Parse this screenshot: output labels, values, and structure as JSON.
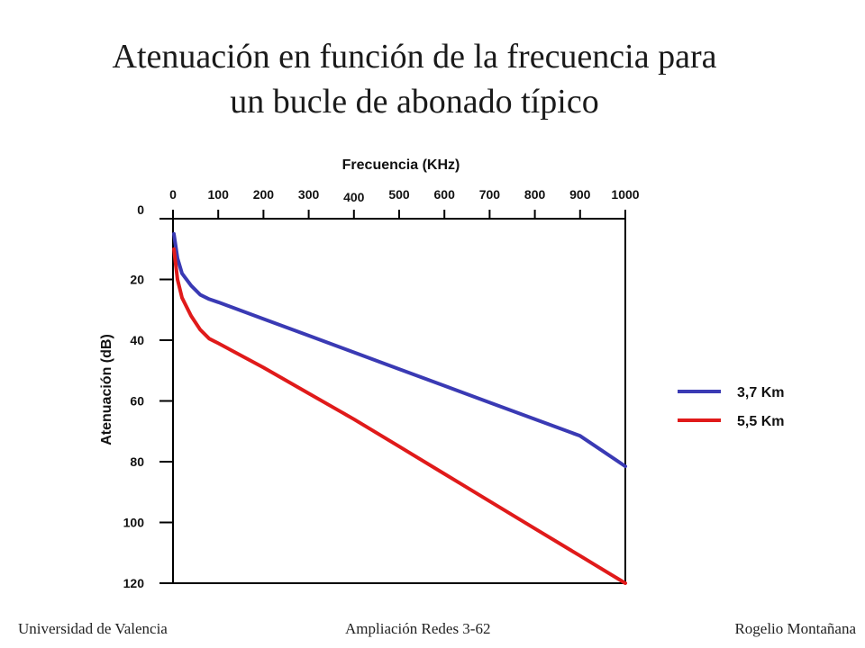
{
  "title_line1": "Atenuación en función de la frecuencia para",
  "title_line2": "un bucle de abonado típico",
  "footer": {
    "left": "Universidad de Valencia",
    "center": "Ampliación Redes 3-62",
    "right": "Rogelio Montañana"
  },
  "chart_data": {
    "type": "line",
    "xlabel": "Frecuencia (KHz)",
    "ylabel": "Atenuación (dB)",
    "xlim": [
      0,
      1000
    ],
    "ylim": [
      0,
      120
    ],
    "y_inverted": true,
    "x_axis_position": "top",
    "x_ticks": [
      "0",
      "100",
      "200",
      "300",
      "400",
      "500",
      "600",
      "700",
      "800",
      "900",
      "1000"
    ],
    "x_tick_values": [
      0,
      100,
      200,
      300,
      400,
      500,
      600,
      700,
      800,
      900,
      1000
    ],
    "y_ticks": [
      "0",
      "20",
      "40",
      "60",
      "80",
      "100",
      "120"
    ],
    "y_tick_values": [
      0,
      20,
      40,
      60,
      80,
      100,
      120
    ],
    "grid": false,
    "legend_position": "right",
    "series": [
      {
        "name": "3,7 Km",
        "color": "#3a3ab4",
        "x": [
          2,
          10,
          20,
          40,
          60,
          80,
          100,
          200,
          300,
          400,
          500,
          600,
          700,
          800,
          900,
          1000
        ],
        "y": [
          5,
          13,
          18,
          22,
          25,
          26.5,
          27.5,
          33,
          38.5,
          44,
          49.5,
          55,
          60.5,
          66,
          71.5,
          81.5
        ]
      },
      {
        "name": "5,5 Km",
        "color": "#e01a1a",
        "x": [
          2,
          10,
          20,
          40,
          60,
          80,
          100,
          200,
          300,
          400,
          500,
          600,
          700,
          800,
          900,
          1000
        ],
        "y": [
          10,
          20,
          26,
          32,
          36.5,
          39.5,
          41,
          49,
          57.5,
          66,
          75,
          84,
          93,
          102,
          111,
          120
        ]
      }
    ]
  }
}
